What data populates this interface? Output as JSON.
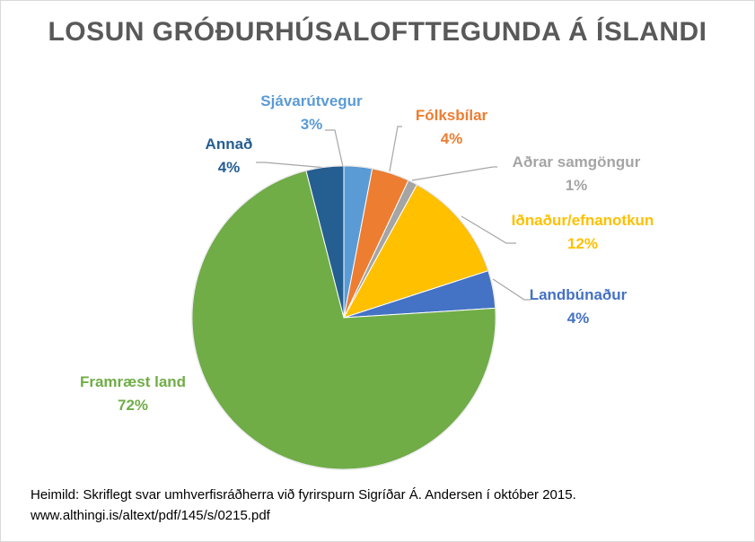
{
  "chart_data": {
    "type": "pie",
    "title": "LOSUN GRÓÐURHÚSALOFTTEGUNDA Á ÍSLANDI",
    "slices": [
      {
        "label": "Sjávarútvegur",
        "value": 3,
        "value_label": "3%",
        "color": "#5b9bd5"
      },
      {
        "label": "Fólksbílar",
        "value": 4,
        "value_label": "4%",
        "color": "#ed7d31"
      },
      {
        "label": "Aðrar samgöngur",
        "value": 1,
        "value_label": "1%",
        "color": "#a5a5a5"
      },
      {
        "label": "Iðnaður/efnanotkun",
        "value": 12,
        "value_label": "12%",
        "color": "#ffc000"
      },
      {
        "label": "Landbúnaður",
        "value": 4,
        "value_label": "4%",
        "color": "#4472c4"
      },
      {
        "label": "Framræst land",
        "value": 72,
        "value_label": "72%",
        "color": "#70ad47"
      },
      {
        "label": "Annað",
        "value": 4,
        "value_label": "4%",
        "color": "#255e91"
      }
    ],
    "legend": "none",
    "data_labels": "outside-with-leader-lines"
  },
  "source": {
    "line1": "Heimild: Skriflegt svar umhverfisráðherra við fyrirspurn Sigríðar Á. Andersen í október 2015.",
    "line2": "www.althingi.is/altext/pdf/145/s/0215.pdf"
  }
}
